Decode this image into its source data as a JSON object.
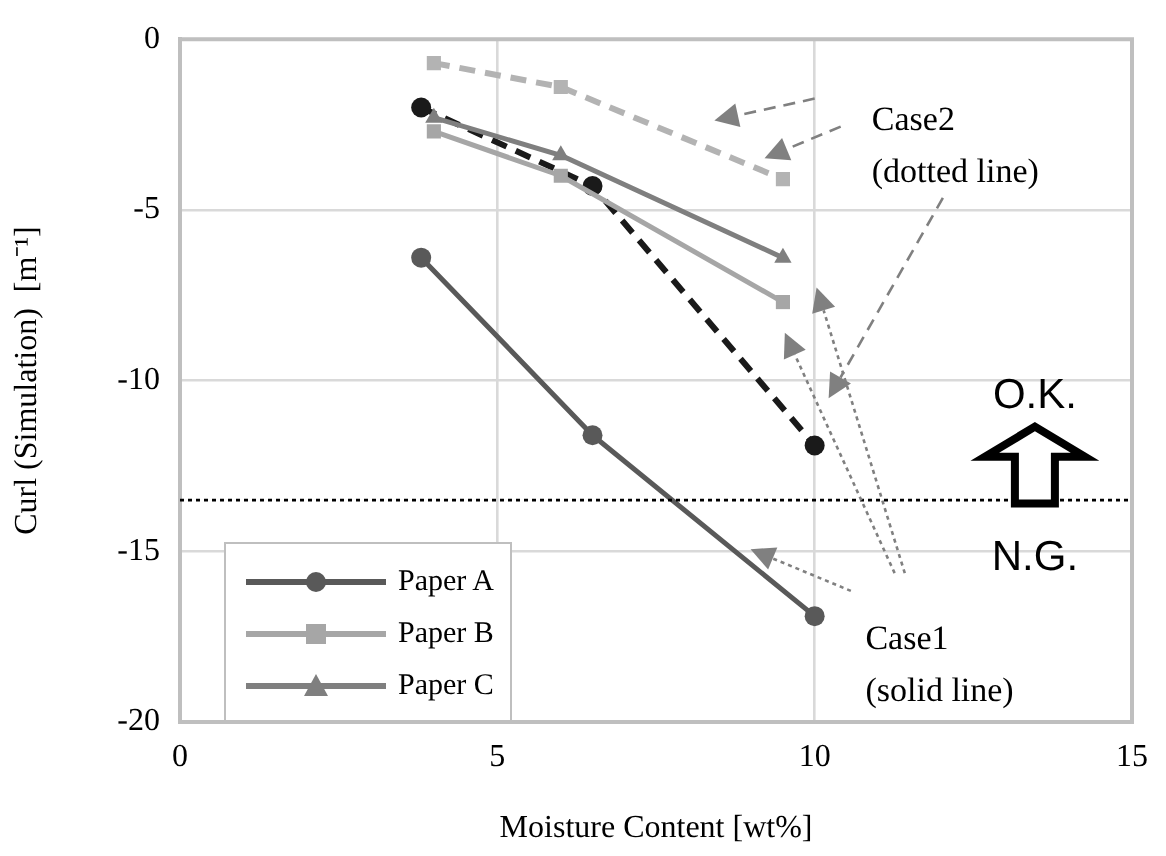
{
  "chart_data": {
    "type": "line",
    "xlabel": "Moisture Content [wt%]",
    "ylabel": "Curl (Simulation)  [m⁻¹]",
    "xlim": [
      0,
      15
    ],
    "xticks": [
      0,
      5,
      10,
      15
    ],
    "ylim": [
      -20,
      0
    ],
    "yticks": [
      0,
      -5,
      -10,
      -15,
      -20
    ],
    "grid": true,
    "legend": "bottom left",
    "series": [
      {
        "name": "Paper A",
        "color": "#595959",
        "marker": "circle",
        "line_style": "solid",
        "x": [
          3.8,
          6.5,
          10.0
        ],
        "values": [
          -6.4,
          -11.6,
          -16.9
        ]
      },
      {
        "name": "Paper B",
        "color": "#a6a6a6",
        "marker": "square",
        "line_style": "solid",
        "x": [
          4.0,
          6.0,
          9.5
        ],
        "values": [
          -2.7,
          -4.0,
          -7.7
        ]
      },
      {
        "name": "Paper C",
        "color": "#7f7f7f",
        "marker": "triangle",
        "line_style": "solid",
        "x": [
          4.0,
          6.0,
          9.5
        ],
        "values": [
          -2.3,
          -3.4,
          -6.4
        ]
      },
      {
        "color": "#1a1a1a",
        "marker": "circle",
        "line_style": "dashed",
        "x": [
          3.8,
          6.5,
          10.0
        ],
        "values": [
          -2.0,
          -4.3,
          -11.9
        ]
      },
      {
        "color": "#b3b3b3",
        "marker": "square",
        "line_style": "dashed",
        "x": [
          4.0,
          6.0,
          9.5
        ],
        "values": [
          -0.7,
          -1.4,
          -4.1
        ]
      }
    ],
    "ref_lines": [
      {
        "axis": "y",
        "value": -13.5,
        "color": "#000000",
        "line_style": "dotted"
      }
    ],
    "annotations": [
      "Case2\n(dotted line)",
      "Case1\n(solid line)",
      "O.K.",
      "N.G."
    ]
  }
}
